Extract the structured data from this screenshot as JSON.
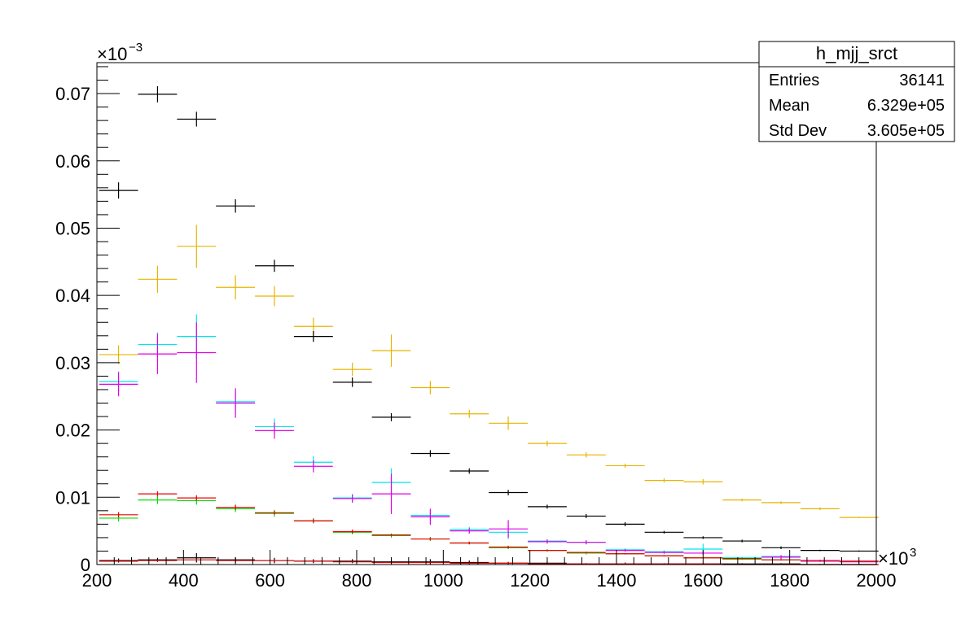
{
  "stats_box": {
    "title": "h_mjj_srct",
    "rows": [
      {
        "label": "Entries",
        "value": "36141"
      },
      {
        "label": "Mean",
        "value": "6.329e+05"
      },
      {
        "label": "Std Dev",
        "value": "3.605e+05"
      }
    ]
  },
  "axes": {
    "x_multiplier_base": "×10",
    "x_multiplier_exp": "3",
    "y_multiplier_base": "×10",
    "y_multiplier_exp": "−3"
  },
  "chart_data": {
    "type": "scatter",
    "title": "h_mjj_srct",
    "xlabel": "",
    "ylabel": "",
    "xlim": [
      200,
      2000
    ],
    "ylim": [
      0,
      0.0746
    ],
    "x_ticks": [
      200,
      400,
      600,
      800,
      1000,
      1200,
      1400,
      1600,
      1800,
      2000
    ],
    "x_tick_labels": [
      "200",
      "400",
      "600",
      "800",
      "1000",
      "1200",
      "1400",
      "1600",
      "1800",
      "2000"
    ],
    "y_ticks": [
      0,
      0.01,
      0.02,
      0.03,
      0.04,
      0.05,
      0.06,
      0.07
    ],
    "y_tick_labels": [
      "0",
      "0.01",
      "0.02",
      "0.03",
      "0.04",
      "0.05",
      "0.06",
      "0.07"
    ],
    "grid": false,
    "legend": "none",
    "series": [
      {
        "color": "#e8b400",
        "x": [
          250,
          340,
          430,
          520,
          610,
          700,
          790,
          880,
          970,
          1060,
          1150,
          1240,
          1330,
          1420,
          1510,
          1600,
          1690,
          1780,
          1870,
          1960
        ],
        "y": [
          0.0312,
          0.0424,
          0.0473,
          0.0412,
          0.0399,
          0.0354,
          0.029,
          0.0318,
          0.0263,
          0.0224,
          0.021,
          0.018,
          0.0163,
          0.0147,
          0.0125,
          0.0123,
          0.0096,
          0.0092,
          0.0083,
          0.007
        ],
        "yerr": [
          0.0014,
          0.002,
          0.0032,
          0.0018,
          0.0015,
          0.0013,
          0.001,
          0.0024,
          0.001,
          0.0006,
          0.001,
          0.0004,
          0.0004,
          0.0003,
          0.0003,
          0.0004,
          0.0002,
          0.0002,
          0.0002,
          0.0001
        ]
      },
      {
        "color": "#000000",
        "x": [
          250,
          340,
          430,
          520,
          610,
          700,
          790,
          880,
          970,
          1060,
          1150,
          1240,
          1330,
          1420,
          1510,
          1600,
          1690,
          1780,
          1870,
          1960
        ],
        "y": [
          0.0556,
          0.0699,
          0.0662,
          0.0533,
          0.0444,
          0.0339,
          0.0271,
          0.0219,
          0.0165,
          0.0139,
          0.0107,
          0.0086,
          0.0072,
          0.006,
          0.0048,
          0.004,
          0.0035,
          0.0025,
          0.0021,
          0.002
        ],
        "yerr": [
          0.0012,
          0.0012,
          0.0011,
          0.001,
          0.0009,
          0.0008,
          0.0007,
          0.0006,
          0.0005,
          0.0004,
          0.0004,
          0.0003,
          0.0003,
          0.0003,
          0.0002,
          0.0002,
          0.0002,
          0.0002,
          0.0001,
          0.0001
        ]
      },
      {
        "color": "#00e5ee",
        "x": [
          250,
          340,
          430,
          520,
          610,
          700,
          790,
          880,
          970,
          1060,
          1150,
          1240,
          1330,
          1420,
          1510,
          1600,
          1690,
          1780,
          1870,
          1960
        ],
        "y": [
          0.0272,
          0.0327,
          0.0339,
          0.0242,
          0.0205,
          0.0152,
          0.0099,
          0.0122,
          0.0073,
          0.0052,
          0.0048,
          0.0035,
          0.0033,
          0.0022,
          0.0019,
          0.0023,
          0.001,
          0.0012,
          0.0006,
          0.0005
        ],
        "yerr": [
          0.0015,
          0.0018,
          0.0033,
          0.0016,
          0.0012,
          0.0009,
          0.0006,
          0.0021,
          0.0007,
          0.0004,
          0.001,
          0.0003,
          0.0003,
          0.0002,
          0.0002,
          0.0008,
          0.0001,
          0.0002,
          0.0001,
          0.0001
        ]
      },
      {
        "color": "#e600e6",
        "x": [
          250,
          340,
          430,
          520,
          610,
          700,
          790,
          880,
          970,
          1060,
          1150,
          1240,
          1330,
          1420,
          1510,
          1600,
          1690,
          1780,
          1870,
          1960
        ],
        "y": [
          0.0268,
          0.0313,
          0.0315,
          0.024,
          0.0199,
          0.0146,
          0.0098,
          0.0105,
          0.0071,
          0.005,
          0.0053,
          0.0034,
          0.0033,
          0.0021,
          0.0018,
          0.0017,
          0.0009,
          0.0011,
          0.0005,
          0.0004
        ],
        "yerr": [
          0.0018,
          0.003,
          0.0045,
          0.0022,
          0.0012,
          0.0009,
          0.0006,
          0.003,
          0.0012,
          0.0004,
          0.0013,
          0.0003,
          0.0003,
          0.0002,
          0.0002,
          0.0003,
          0.0001,
          0.0003,
          0.0001,
          0.0001
        ]
      },
      {
        "color": "#00dd00",
        "x": [
          250,
          340,
          430,
          520,
          610,
          700,
          790,
          880,
          970,
          1060,
          1150,
          1240,
          1330,
          1420,
          1510,
          1600,
          1690,
          1780,
          1870,
          1960
        ],
        "y": [
          0.0069,
          0.0096,
          0.0095,
          0.0083,
          0.0076,
          0.0065,
          0.0048,
          0.0043,
          0.0038,
          0.0032,
          0.0025,
          0.0021,
          0.0017,
          0.0016,
          0.0013,
          0.001,
          0.0008,
          0.0007,
          0.0006,
          0.0005
        ],
        "yerr": [
          0.0005,
          0.0006,
          0.0006,
          0.0005,
          0.0005,
          0.0004,
          0.0003,
          0.0003,
          0.0003,
          0.0002,
          0.0002,
          0.0002,
          0.0002,
          0.0001,
          0.0001,
          0.0001,
          0.0001,
          0.0001,
          0.0001,
          0.0001
        ]
      },
      {
        "color": "#ee0000",
        "x": [
          250,
          340,
          430,
          520,
          610,
          700,
          790,
          880,
          970,
          1060,
          1150,
          1240,
          1330,
          1420,
          1510,
          1600,
          1690,
          1780,
          1870,
          1960
        ],
        "y": [
          0.0074,
          0.0105,
          0.0099,
          0.0085,
          0.0077,
          0.0065,
          0.0049,
          0.0044,
          0.0038,
          0.0032,
          0.0026,
          0.0021,
          0.0018,
          0.0016,
          0.0013,
          0.001,
          0.0009,
          0.0007,
          0.0006,
          0.0005
        ],
        "yerr": [
          0.0004,
          0.0004,
          0.0004,
          0.0004,
          0.0003,
          0.0003,
          0.0003,
          0.0002,
          0.0002,
          0.0002,
          0.0002,
          0.0001,
          0.0001,
          0.0001,
          0.0001,
          0.0001,
          0.0001,
          0.0001,
          0.0001,
          0.0001
        ]
      },
      {
        "color": "#000000",
        "x": [
          250,
          340,
          430,
          520,
          610,
          700,
          790,
          880,
          970,
          1060,
          1150,
          1240,
          1330,
          1420,
          1510,
          1600,
          1690,
          1780,
          1870,
          1960
        ],
        "y": [
          0.0006,
          0.0007,
          0.001,
          0.0007,
          0.0006,
          0.0005,
          0.0005,
          0.0004,
          0.0004,
          0.0003,
          0.0002,
          0.0002,
          0.0001,
          0.0001,
          0.0001,
          0.0001,
          0.0001,
          0.0001,
          0.0,
          0.0
        ],
        "yerr": [
          0.0003,
          0.0003,
          0.0007,
          0.0004,
          0.0004,
          0.0003,
          0.0003,
          0.0003,
          0.0004,
          0.0003,
          0.0002,
          0.0002,
          0.0001,
          0.0002,
          0.0001,
          0.0001,
          0.0001,
          0.0001,
          0.0001,
          0.0001
        ]
      },
      {
        "color": "#dd0000",
        "x": [
          250,
          340,
          430,
          520,
          610,
          700,
          790,
          880,
          970,
          1060,
          1150,
          1240,
          1330,
          1420,
          1510,
          1600,
          1690,
          1780,
          1870,
          1960
        ],
        "y": [
          0.0005,
          0.0006,
          0.0007,
          0.0006,
          0.0006,
          0.0005,
          0.0004,
          0.0003,
          0.0003,
          0.0002,
          0.0002,
          0.0001,
          0.0001,
          0.0001,
          0.0001,
          0.0001,
          0.0,
          0.0,
          0.0,
          0.0
        ],
        "yerr": [
          0.0001,
          0.0001,
          0.0001,
          0.0001,
          0.0001,
          0.0001,
          0.0001,
          0.0001,
          0.0001,
          0.0001,
          0.0001,
          0.0001,
          0.0001,
          0.0001,
          0.0,
          0.0,
          0.0,
          0.0,
          0.0,
          0.0
        ]
      }
    ]
  }
}
